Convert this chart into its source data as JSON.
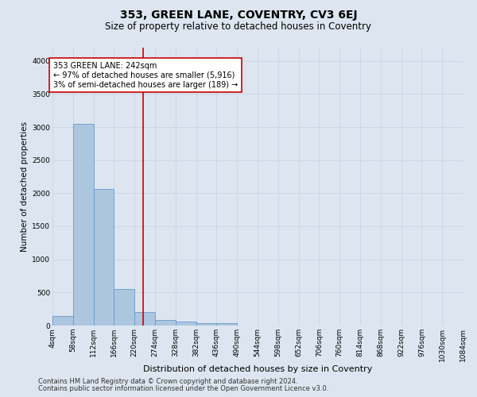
{
  "title": "353, GREEN LANE, COVENTRY, CV3 6EJ",
  "subtitle": "Size of property relative to detached houses in Coventry",
  "xlabel": "Distribution of detached houses by size in Coventry",
  "ylabel": "Number of detached properties",
  "bin_edges": [
    4,
    58,
    112,
    166,
    220,
    274,
    328,
    382,
    436,
    490,
    544,
    598,
    652,
    706,
    760,
    814,
    868,
    922,
    976,
    1030,
    1084
  ],
  "bar_heights": [
    140,
    3050,
    2060,
    550,
    210,
    85,
    55,
    35,
    35,
    0,
    0,
    0,
    0,
    0,
    0,
    0,
    0,
    0,
    0,
    0
  ],
  "bar_color": "#adc6e0",
  "bar_edge_color": "#6699cc",
  "property_size": 242,
  "vline_color": "#cc0000",
  "annotation_text": "353 GREEN LANE: 242sqm\n← 97% of detached houses are smaller (5,916)\n3% of semi-detached houses are larger (189) →",
  "annotation_box_color": "#ffffff",
  "annotation_box_edge_color": "#cc0000",
  "grid_color": "#c8d4e8",
  "bg_color": "#dde6f0",
  "plot_bg_color": "#dde6f0",
  "ylim": [
    0,
    4200
  ],
  "yticks": [
    0,
    500,
    1000,
    1500,
    2000,
    2500,
    3000,
    3500,
    4000
  ],
  "footer_line1": "Contains HM Land Registry data © Crown copyright and database right 2024.",
  "footer_line2": "Contains public sector information licensed under the Open Government Licence v3.0.",
  "title_fontsize": 10,
  "subtitle_fontsize": 8.5,
  "axis_label_fontsize": 7.5,
  "tick_fontsize": 6.5,
  "annotation_fontsize": 7,
  "footer_fontsize": 6
}
